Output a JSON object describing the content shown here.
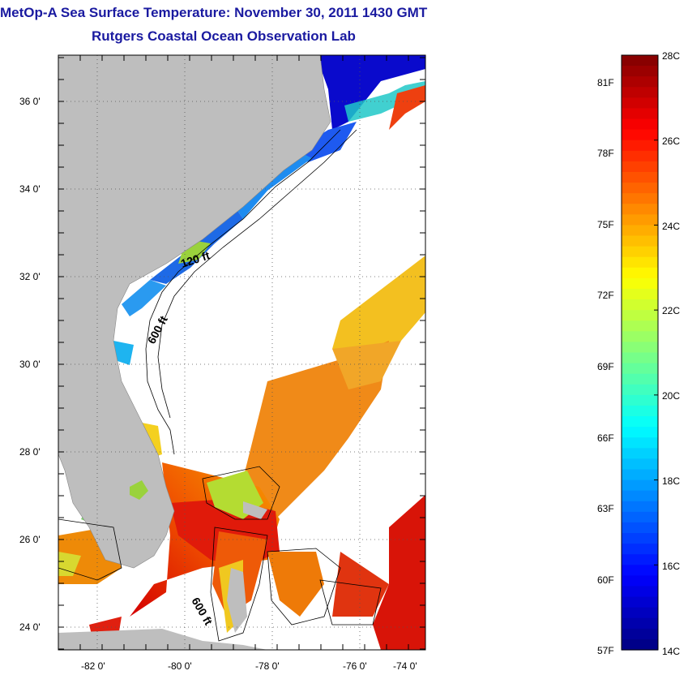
{
  "title": {
    "line1": "MetOp-A Sea Surface Temperature:  November 30, 2011 1430 GMT",
    "line2": "Rutgers Coastal Ocean Observation Lab"
  },
  "map": {
    "lat_labels": [
      "36 0'",
      "34 0'",
      "32 0'",
      "30 0'",
      "28 0'",
      "26 0'",
      "24 0'"
    ],
    "lon_labels": [
      "-82 0'",
      "-80 0'",
      "-78 0'",
      "-76 0'",
      "-74 0'"
    ],
    "contour_labels": [
      "120 ft",
      "600 ft",
      "600 ft"
    ],
    "land_color": "#bebebe"
  },
  "colorbar": {
    "celsius_labels": [
      "28C",
      "26C",
      "24C",
      "22C",
      "20C",
      "18C",
      "16C",
      "14C"
    ],
    "fahrenheit_labels": [
      "81F",
      "78F",
      "75F",
      "72F",
      "69F",
      "66F",
      "63F",
      "60F",
      "57F"
    ],
    "range_c": [
      14,
      28
    ]
  }
}
